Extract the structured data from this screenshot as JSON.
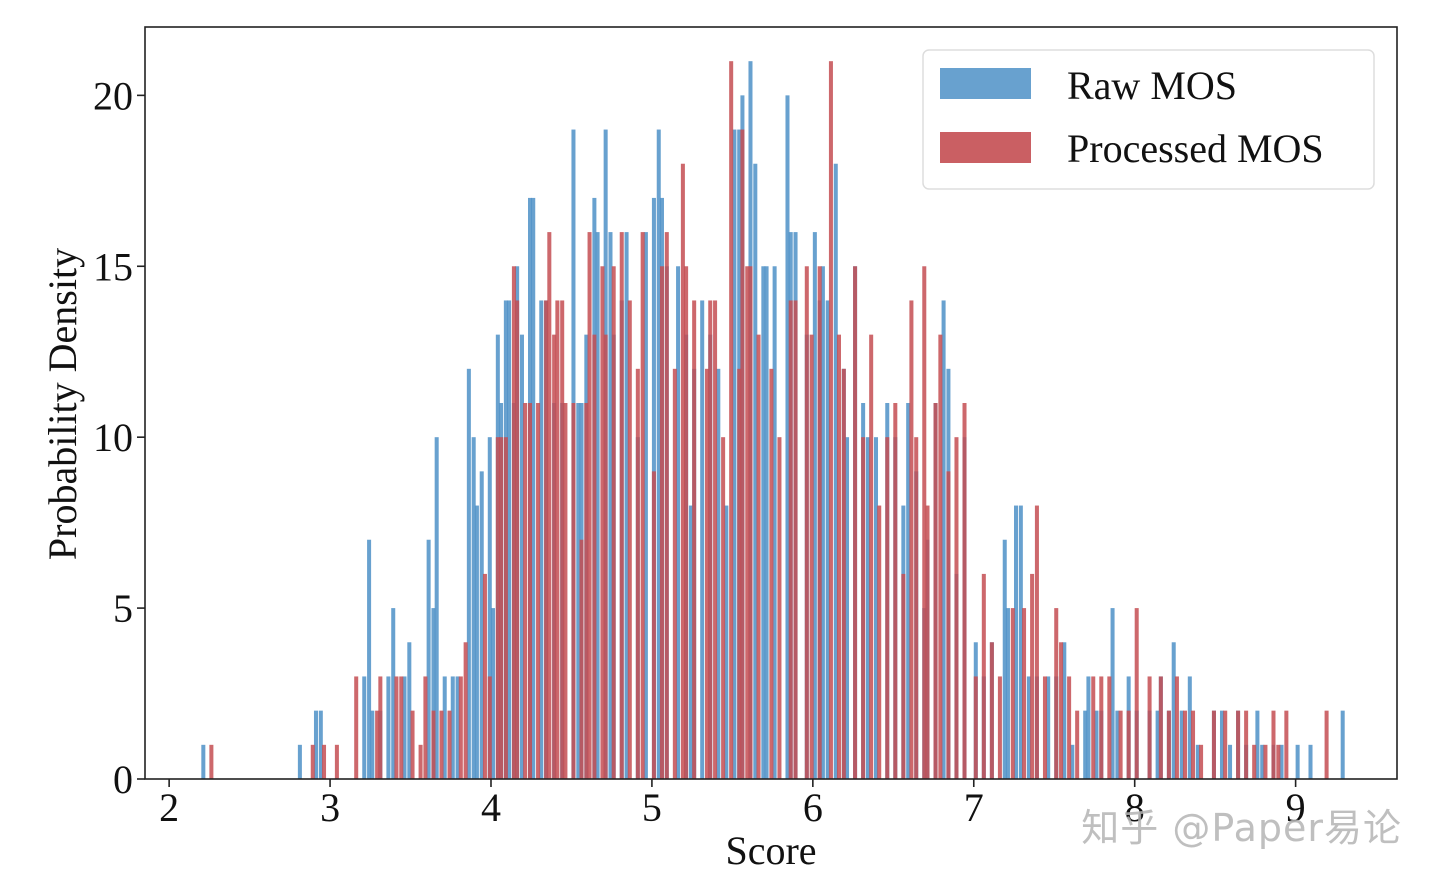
{
  "chart_data": {
    "type": "histogram",
    "title": "",
    "xlabel": "Score",
    "ylabel": "Probability Density",
    "xlim": [
      1.85,
      9.63
    ],
    "ylim": [
      0,
      22
    ],
    "xticks": [
      2,
      3,
      4,
      5,
      6,
      7,
      8,
      9
    ],
    "yticks": [
      0,
      5,
      10,
      15,
      20
    ],
    "bin_width": 0.025,
    "legend": {
      "position": "top-right",
      "entries": [
        "Raw MOS",
        "Processed MOS"
      ]
    },
    "colors": {
      "raw": "#4e91c7",
      "processed": "#c44e52",
      "overlap": "#9a3b47"
    },
    "series": [
      {
        "name": "Raw MOS",
        "bins": [
          [
            2.2,
            1
          ],
          [
            2.8,
            1
          ],
          [
            2.9,
            2
          ],
          [
            2.93,
            2
          ],
          [
            3.2,
            3
          ],
          [
            3.23,
            7
          ],
          [
            3.25,
            2
          ],
          [
            3.3,
            2
          ],
          [
            3.35,
            3
          ],
          [
            3.38,
            5
          ],
          [
            3.45,
            3
          ],
          [
            3.48,
            4
          ],
          [
            3.6,
            7
          ],
          [
            3.63,
            5
          ],
          [
            3.65,
            10
          ],
          [
            3.7,
            3
          ],
          [
            3.75,
            3
          ],
          [
            3.78,
            3
          ],
          [
            3.85,
            12
          ],
          [
            3.88,
            10
          ],
          [
            3.9,
            8
          ],
          [
            3.93,
            9
          ],
          [
            3.98,
            10
          ],
          [
            4.0,
            5
          ],
          [
            4.03,
            13
          ],
          [
            4.05,
            11
          ],
          [
            4.08,
            14
          ],
          [
            4.1,
            14
          ],
          [
            4.13,
            11
          ],
          [
            4.15,
            15
          ],
          [
            4.18,
            13
          ],
          [
            4.23,
            17
          ],
          [
            4.25,
            17
          ],
          [
            4.3,
            14
          ],
          [
            4.33,
            14
          ],
          [
            4.38,
            11
          ],
          [
            4.43,
            11
          ],
          [
            4.5,
            19
          ],
          [
            4.53,
            11
          ],
          [
            4.55,
            11
          ],
          [
            4.58,
            13
          ],
          [
            4.63,
            17
          ],
          [
            4.65,
            16
          ],
          [
            4.7,
            19
          ],
          [
            4.73,
            16
          ],
          [
            4.75,
            13
          ],
          [
            4.8,
            14
          ],
          [
            4.83,
            16
          ],
          [
            4.9,
            10
          ],
          [
            4.95,
            16
          ],
          [
            5.0,
            17
          ],
          [
            5.03,
            19
          ],
          [
            5.05,
            17
          ],
          [
            5.08,
            15
          ],
          [
            5.15,
            15
          ],
          [
            5.2,
            13
          ],
          [
            5.23,
            8
          ],
          [
            5.25,
            12
          ],
          [
            5.3,
            14
          ],
          [
            5.35,
            13
          ],
          [
            5.4,
            12
          ],
          [
            5.45,
            8
          ],
          [
            5.5,
            19
          ],
          [
            5.53,
            19
          ],
          [
            5.55,
            20
          ],
          [
            5.6,
            21
          ],
          [
            5.63,
            18
          ],
          [
            5.68,
            15
          ],
          [
            5.7,
            15
          ],
          [
            5.75,
            15
          ],
          [
            5.83,
            20
          ],
          [
            5.85,
            16
          ],
          [
            5.88,
            16
          ],
          [
            5.95,
            13
          ],
          [
            6.0,
            16
          ],
          [
            6.03,
            14
          ],
          [
            6.05,
            15
          ],
          [
            6.08,
            14
          ],
          [
            6.13,
            18
          ],
          [
            6.18,
            12
          ],
          [
            6.2,
            10
          ],
          [
            6.25,
            15
          ],
          [
            6.3,
            11
          ],
          [
            6.33,
            10
          ],
          [
            6.38,
            10
          ],
          [
            6.45,
            11
          ],
          [
            6.5,
            10
          ],
          [
            6.55,
            8
          ],
          [
            6.58,
            11
          ],
          [
            6.63,
            9
          ],
          [
            6.68,
            5
          ],
          [
            6.7,
            7
          ],
          [
            6.75,
            11
          ],
          [
            6.8,
            14
          ],
          [
            6.83,
            12
          ],
          [
            6.88,
            6
          ],
          [
            6.93,
            10
          ],
          [
            7.0,
            4
          ],
          [
            7.05,
            3
          ],
          [
            7.1,
            4
          ],
          [
            7.18,
            7
          ],
          [
            7.2,
            5
          ],
          [
            7.25,
            8
          ],
          [
            7.28,
            8
          ],
          [
            7.33,
            3
          ],
          [
            7.38,
            3
          ],
          [
            7.45,
            3
          ],
          [
            7.5,
            3
          ],
          [
            7.55,
            4
          ],
          [
            7.6,
            1
          ],
          [
            7.68,
            2
          ],
          [
            7.7,
            3
          ],
          [
            7.75,
            2
          ],
          [
            7.78,
            2
          ],
          [
            7.85,
            5
          ],
          [
            7.88,
            2
          ],
          [
            7.95,
            3
          ],
          [
            8.0,
            2
          ],
          [
            8.08,
            2
          ],
          [
            8.13,
            2
          ],
          [
            8.15,
            3
          ],
          [
            8.2,
            2
          ],
          [
            8.23,
            4
          ],
          [
            8.28,
            2
          ],
          [
            8.33,
            3
          ],
          [
            8.38,
            1
          ],
          [
            8.48,
            2
          ],
          [
            8.53,
            2
          ],
          [
            8.58,
            1
          ],
          [
            8.63,
            2
          ],
          [
            8.68,
            1
          ],
          [
            8.75,
            2
          ],
          [
            8.78,
            1
          ],
          [
            8.85,
            1
          ],
          [
            8.9,
            1
          ],
          [
            9.0,
            1
          ],
          [
            9.08,
            1
          ],
          [
            9.28,
            2
          ]
        ]
      },
      {
        "name": "Processed MOS",
        "bins": [
          [
            2.25,
            1
          ],
          [
            2.88,
            1
          ],
          [
            2.95,
            1
          ],
          [
            3.03,
            1
          ],
          [
            3.15,
            3
          ],
          [
            3.28,
            2
          ],
          [
            3.3,
            3
          ],
          [
            3.4,
            3
          ],
          [
            3.43,
            3
          ],
          [
            3.5,
            2
          ],
          [
            3.55,
            1
          ],
          [
            3.58,
            3
          ],
          [
            3.63,
            2
          ],
          [
            3.68,
            2
          ],
          [
            3.73,
            2
          ],
          [
            3.8,
            3
          ],
          [
            3.83,
            4
          ],
          [
            3.95,
            6
          ],
          [
            3.98,
            3
          ],
          [
            4.03,
            10
          ],
          [
            4.05,
            10
          ],
          [
            4.08,
            10
          ],
          [
            4.13,
            15
          ],
          [
            4.15,
            14
          ],
          [
            4.2,
            11
          ],
          [
            4.23,
            11
          ],
          [
            4.28,
            11
          ],
          [
            4.33,
            14
          ],
          [
            4.35,
            16
          ],
          [
            4.38,
            13
          ],
          [
            4.4,
            14
          ],
          [
            4.43,
            14
          ],
          [
            4.45,
            11
          ],
          [
            4.5,
            11
          ],
          [
            4.55,
            7
          ],
          [
            4.58,
            11
          ],
          [
            4.6,
            16
          ],
          [
            4.63,
            13
          ],
          [
            4.68,
            15
          ],
          [
            4.7,
            13
          ],
          [
            4.75,
            15
          ],
          [
            4.8,
            16
          ],
          [
            4.85,
            14
          ],
          [
            4.9,
            12
          ],
          [
            4.93,
            16
          ],
          [
            5.0,
            9
          ],
          [
            5.05,
            15
          ],
          [
            5.08,
            16
          ],
          [
            5.13,
            12
          ],
          [
            5.18,
            18
          ],
          [
            5.2,
            15
          ],
          [
            5.25,
            14
          ],
          [
            5.33,
            12
          ],
          [
            5.35,
            14
          ],
          [
            5.38,
            14
          ],
          [
            5.43,
            10
          ],
          [
            5.48,
            21
          ],
          [
            5.53,
            12
          ],
          [
            5.55,
            19
          ],
          [
            5.58,
            15
          ],
          [
            5.6,
            15
          ],
          [
            5.65,
            13
          ],
          [
            5.73,
            12
          ],
          [
            5.78,
            10
          ],
          [
            5.85,
            14
          ],
          [
            5.88,
            14
          ],
          [
            5.95,
            15
          ],
          [
            5.98,
            13
          ],
          [
            6.03,
            15
          ],
          [
            6.1,
            21
          ],
          [
            6.15,
            13
          ],
          [
            6.18,
            12
          ],
          [
            6.25,
            15
          ],
          [
            6.3,
            10
          ],
          [
            6.35,
            13
          ],
          [
            6.4,
            8
          ],
          [
            6.45,
            10
          ],
          [
            6.5,
            11
          ],
          [
            6.55,
            6
          ],
          [
            6.6,
            14
          ],
          [
            6.63,
            10
          ],
          [
            6.68,
            15
          ],
          [
            6.7,
            8
          ],
          [
            6.75,
            11
          ],
          [
            6.78,
            13
          ],
          [
            6.83,
            9
          ],
          [
            6.88,
            10
          ],
          [
            6.93,
            11
          ],
          [
            7.0,
            3
          ],
          [
            7.05,
            6
          ],
          [
            7.1,
            4
          ],
          [
            7.15,
            3
          ],
          [
            7.23,
            5
          ],
          [
            7.3,
            5
          ],
          [
            7.35,
            6
          ],
          [
            7.38,
            8
          ],
          [
            7.43,
            3
          ],
          [
            7.5,
            5
          ],
          [
            7.53,
            4
          ],
          [
            7.58,
            3
          ],
          [
            7.63,
            2
          ],
          [
            7.73,
            3
          ],
          [
            7.78,
            3
          ],
          [
            7.83,
            3
          ],
          [
            7.9,
            2
          ],
          [
            7.95,
            2
          ],
          [
            8.0,
            5
          ],
          [
            8.08,
            3
          ],
          [
            8.15,
            3
          ],
          [
            8.2,
            2
          ],
          [
            8.25,
            3
          ],
          [
            8.3,
            2
          ],
          [
            8.35,
            2
          ],
          [
            8.4,
            1
          ],
          [
            8.48,
            2
          ],
          [
            8.55,
            2
          ],
          [
            8.63,
            2
          ],
          [
            8.68,
            2
          ],
          [
            8.73,
            1
          ],
          [
            8.8,
            1
          ],
          [
            8.85,
            2
          ],
          [
            8.88,
            1
          ],
          [
            8.93,
            2
          ],
          [
            9.18,
            2
          ]
        ]
      }
    ]
  },
  "watermark": {
    "text": "知乎 @Paper易论"
  }
}
